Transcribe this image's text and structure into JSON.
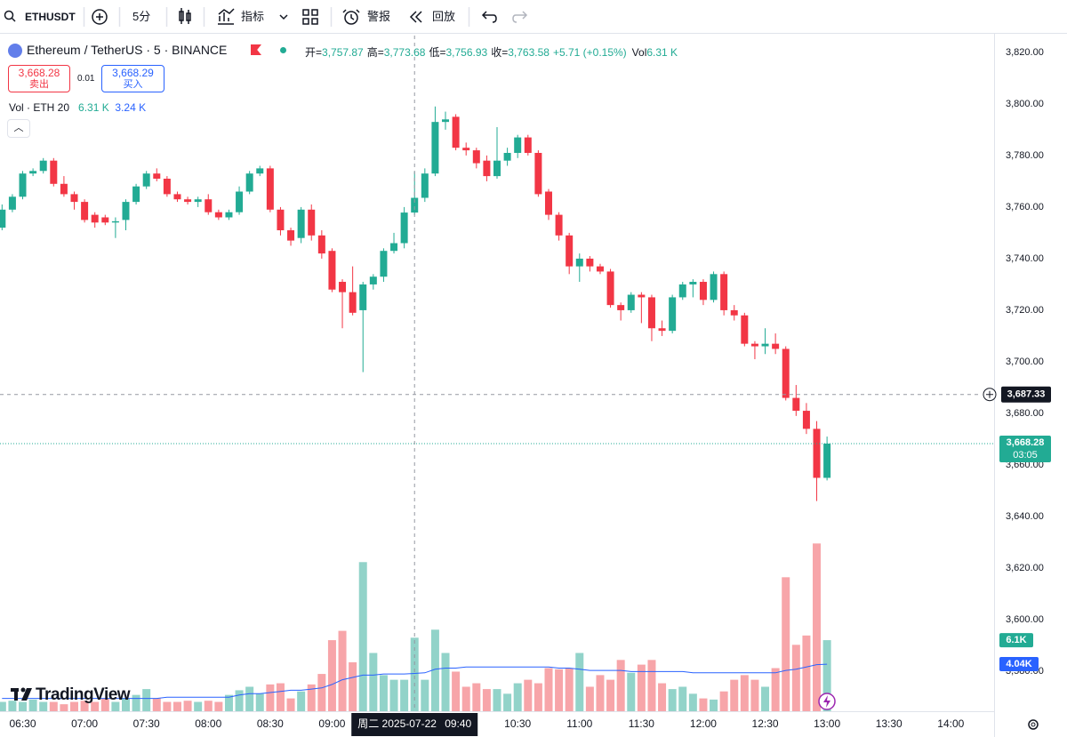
{
  "toolbar": {
    "symbol": "ETHUSDT",
    "interval": "5分",
    "indicators": "指标",
    "alert": "警报",
    "replay": "回放"
  },
  "header": {
    "title": "Ethereum / TetherUS · 5 · BINANCE",
    "ohlc": [
      {
        "name": "开=",
        "label": "3,757.87"
      },
      {
        "name": "高=",
        "label": "3,773.68"
      },
      {
        "name": "低=",
        "label": "3,756.93"
      },
      {
        "name": "收=",
        "label": "3,763.58"
      }
    ],
    "change": "+5.71 (+0.15%)",
    "volume_name": "Vol",
    "volume_label": "6.31 K"
  },
  "trade": {
    "sell_price": "3,668.28",
    "sell": "卖出",
    "spread": "0.01",
    "buy_price": "3,668.29",
    "buy": "买入"
  },
  "legend": {
    "name": "Vol · ETH 20",
    "volume": {
      "value": 6.31,
      "label": "6.31 K"
    },
    "ma": {
      "value": 3.24,
      "label": "3.24 K"
    }
  },
  "watermark": "TradingView",
  "chart_data": {
    "type": "candlestick",
    "x": [
      "06:20",
      "06:25",
      "06:30",
      "06:35",
      "06:40",
      "06:45",
      "06:50",
      "06:55",
      "07:00",
      "07:05",
      "07:10",
      "07:15",
      "07:20",
      "07:25",
      "07:30",
      "07:35",
      "07:40",
      "07:45",
      "07:50",
      "07:55",
      "08:00",
      "08:05",
      "08:10",
      "08:15",
      "08:20",
      "08:25",
      "08:30",
      "08:35",
      "08:40",
      "08:45",
      "08:50",
      "08:55",
      "09:00",
      "09:05",
      "09:10",
      "09:15",
      "09:20",
      "09:25",
      "09:30",
      "09:35",
      "09:40",
      "09:45",
      "09:50",
      "09:55",
      "10:00",
      "10:05",
      "10:10",
      "10:15",
      "10:20",
      "10:25",
      "10:30",
      "10:35",
      "10:40",
      "10:45",
      "10:50",
      "10:55",
      "11:00",
      "11:05",
      "11:10",
      "11:15",
      "11:20",
      "11:25",
      "11:30",
      "11:35",
      "11:40",
      "11:45",
      "11:50",
      "11:55",
      "12:00",
      "12:05",
      "12:10",
      "12:15",
      "12:20",
      "12:25",
      "12:30",
      "12:35",
      "12:40",
      "12:45",
      "12:50",
      "12:55",
      "13:00"
    ],
    "open": [
      3752,
      3759,
      3764,
      3773,
      3774,
      3778,
      3769,
      3765,
      3762,
      3757,
      3756,
      3754,
      3755,
      3762,
      3768,
      3773,
      3771,
      3765,
      3763,
      3762,
      3763,
      3758,
      3756,
      3758,
      3766,
      3773,
      3775,
      3759,
      3751,
      3748,
      3759,
      3749,
      3743,
      3731,
      3727,
      3720,
      3730,
      3733,
      3743,
      3746,
      3757.87,
      3763.58,
      3773,
      3793,
      3795,
      3783,
      3782,
      3778,
      3772,
      3778,
      3781,
      3787,
      3781,
      3766,
      3757,
      3749,
      3737,
      3740,
      3737,
      3735,
      3722,
      3720,
      3726,
      3725,
      3713,
      3712,
      3725,
      3730,
      3731,
      3724,
      3734,
      3720,
      3718,
      3707,
      3706,
      3707,
      3705,
      3686,
      3681,
      3674,
      3655
    ],
    "high": [
      3761,
      3765,
      3774,
      3775,
      3779,
      3779,
      3772,
      3766,
      3763,
      3758,
      3757,
      3756,
      3763,
      3769,
      3774,
      3775,
      3772,
      3766,
      3764,
      3764,
      3765,
      3759,
      3759,
      3768,
      3774,
      3776,
      3776,
      3760,
      3752,
      3760,
      3761,
      3751,
      3744,
      3732,
      3737,
      3731,
      3734,
      3744,
      3750,
      3760,
      3773.68,
      3775,
      3799,
      3797,
      3796,
      3785,
      3783,
      3780,
      3791,
      3783,
      3788,
      3788,
      3782,
      3767,
      3758,
      3750,
      3742,
      3741,
      3738,
      3736,
      3723,
      3727,
      3727,
      3726,
      3716,
      3726,
      3731,
      3732,
      3732,
      3735,
      3735,
      3722,
      3719,
      3708,
      3713,
      3711,
      3706,
      3691,
      3684,
      3677,
      3671
    ],
    "low": [
      3751,
      3758,
      3763,
      3772,
      3773,
      3768,
      3764,
      3759,
      3754,
      3752,
      3753,
      3748,
      3751,
      3761,
      3767,
      3770,
      3764,
      3762,
      3761,
      3760,
      3757,
      3755,
      3755,
      3757,
      3765,
      3772,
      3758,
      3749,
      3745,
      3746,
      3747,
      3740,
      3727,
      3713,
      3718,
      3696,
      3728,
      3731,
      3742,
      3744,
      3756.93,
      3762,
      3772,
      3790,
      3782,
      3780,
      3775,
      3770,
      3771,
      3776,
      3779,
      3780,
      3764,
      3755,
      3747,
      3734,
      3731,
      3735,
      3734,
      3721,
      3716,
      3719,
      3715,
      3708,
      3710,
      3711,
      3724,
      3725,
      3722,
      3723,
      3718,
      3716,
      3706,
      3701,
      3703,
      3703,
      3685,
      3679,
      3672,
      3646,
      3654
    ],
    "close": [
      3759,
      3764,
      3773,
      3774,
      3778,
      3769,
      3765,
      3762,
      3755,
      3754,
      3754,
      3754.5,
      3762,
      3768,
      3773,
      3771,
      3765,
      3763,
      3762,
      3763,
      3758,
      3756,
      3758,
      3766,
      3773,
      3775,
      3759,
      3751,
      3747,
      3759,
      3749,
      3742,
      3728,
      3727,
      3719,
      3730,
      3733,
      3743,
      3746,
      3757.87,
      3763.58,
      3773,
      3793,
      3794,
      3783,
      3782,
      3777,
      3772,
      3778,
      3781,
      3787,
      3781,
      3765,
      3757,
      3749,
      3737,
      3740,
      3737,
      3735,
      3722,
      3720,
      3726,
      3725,
      3713,
      3712,
      3725,
      3730,
      3731,
      3724,
      3734,
      3720,
      3718,
      3707,
      3706,
      3707,
      3705,
      3686,
      3681,
      3674,
      3655,
      3668.28
    ],
    "up_color": "#22ab94",
    "down_color": "#f23645",
    "xlim": [
      "06:19",
      "14:21"
    ],
    "xticks": [
      "06:30",
      "07:00",
      "07:30",
      "08:00",
      "08:30",
      "09:00",
      "09:30",
      "10:00",
      "10:30",
      "11:00",
      "11:30",
      "12:00",
      "12:30",
      "13:00",
      "13:30",
      "14:00"
    ],
    "ylim": [
      3564.5,
      3826.5
    ],
    "yticks": [
      {
        "value": 3580,
        "label": "3,580.00"
      },
      {
        "value": 3600,
        "label": "3,600.00"
      },
      {
        "value": 3620,
        "label": "3,620.00"
      },
      {
        "value": 3640,
        "label": "3,640.00"
      },
      {
        "value": 3660,
        "label": "3,660.00"
      },
      {
        "value": 3680,
        "label": "3,680.00"
      },
      {
        "value": 3700,
        "label": "3,700.00"
      },
      {
        "value": 3720,
        "label": "3,720.00"
      },
      {
        "value": 3740,
        "label": "3,740.00"
      },
      {
        "value": 3760,
        "label": "3,760.00"
      },
      {
        "value": 3780,
        "label": "3,780.00"
      },
      {
        "value": 3800,
        "label": "3,800.00"
      },
      {
        "value": 3820,
        "label": "3,820.00"
      }
    ],
    "grid": false,
    "volume": {
      "values": [
        0.8,
        0.9,
        0.8,
        1.0,
        0.8,
        0.8,
        0.6,
        0.8,
        0.9,
        0.8,
        1.1,
        0.8,
        1.1,
        1.4,
        1.9,
        1.1,
        0.8,
        0.8,
        0.9,
        0.8,
        0.9,
        0.8,
        1.4,
        1.8,
        2.1,
        1.5,
        2.3,
        2.4,
        1.1,
        1.7,
        2.3,
        3.2,
        6.1,
        6.9,
        4.2,
        12.8,
        5.0,
        3.1,
        2.7,
        2.7,
        6.31,
        2.7,
        7.0,
        5.0,
        3.4,
        2.1,
        2.4,
        1.9,
        1.9,
        1.5,
        2.4,
        2.7,
        2.4,
        3.7,
        3.6,
        3.7,
        5.0,
        2.1,
        3.1,
        2.7,
        4.4,
        3.3,
        4.0,
        4.4,
        2.4,
        1.9,
        2.1,
        1.5,
        1.1,
        1.0,
        1.7,
        2.7,
        3.1,
        2.7,
        2.1,
        3.7,
        11.5,
        5.7,
        6.5,
        14.4,
        6.1
      ],
      "ylim": [
        0,
        58
      ],
      "up_color": "#92d3c9",
      "down_color": "#f7a5a9",
      "last": {
        "value": 6.1,
        "label": "6.1K"
      }
    },
    "volume_ma": {
      "color": "#2962ff",
      "values": [
        1.1,
        1.1,
        1.1,
        1.1,
        1.1,
        1.1,
        1.1,
        1.1,
        1.1,
        1.1,
        1.1,
        1.1,
        1.1,
        1.1,
        1.1,
        1.1,
        1.2,
        1.2,
        1.2,
        1.2,
        1.2,
        1.2,
        1.2,
        1.4,
        1.5,
        1.5,
        1.6,
        1.7,
        1.8,
        1.8,
        1.9,
        2.0,
        2.3,
        2.7,
        2.9,
        3.1,
        3.1,
        3.2,
        3.2,
        3.2,
        3.24,
        3.3,
        3.6,
        3.7,
        3.7,
        3.8,
        3.8,
        3.8,
        3.8,
        3.8,
        3.8,
        3.8,
        3.8,
        3.8,
        3.7,
        3.7,
        3.6,
        3.5,
        3.5,
        3.5,
        3.5,
        3.4,
        3.4,
        3.4,
        3.4,
        3.4,
        3.4,
        3.3,
        3.3,
        3.3,
        3.3,
        3.3,
        3.3,
        3.3,
        3.3,
        3.3,
        3.5,
        3.6,
        3.8,
        4.0,
        4.04
      ],
      "last": {
        "value": 4.04,
        "label": "4.04K"
      }
    },
    "last_price": {
      "value": 3668.28,
      "label": "3,668.28",
      "countdown": "03:05"
    },
    "crosshair": {
      "x": "09:40",
      "date_label": "周二 2025-07-22",
      "price": {
        "value": 3687.33,
        "label": "3,687.33"
      }
    }
  }
}
